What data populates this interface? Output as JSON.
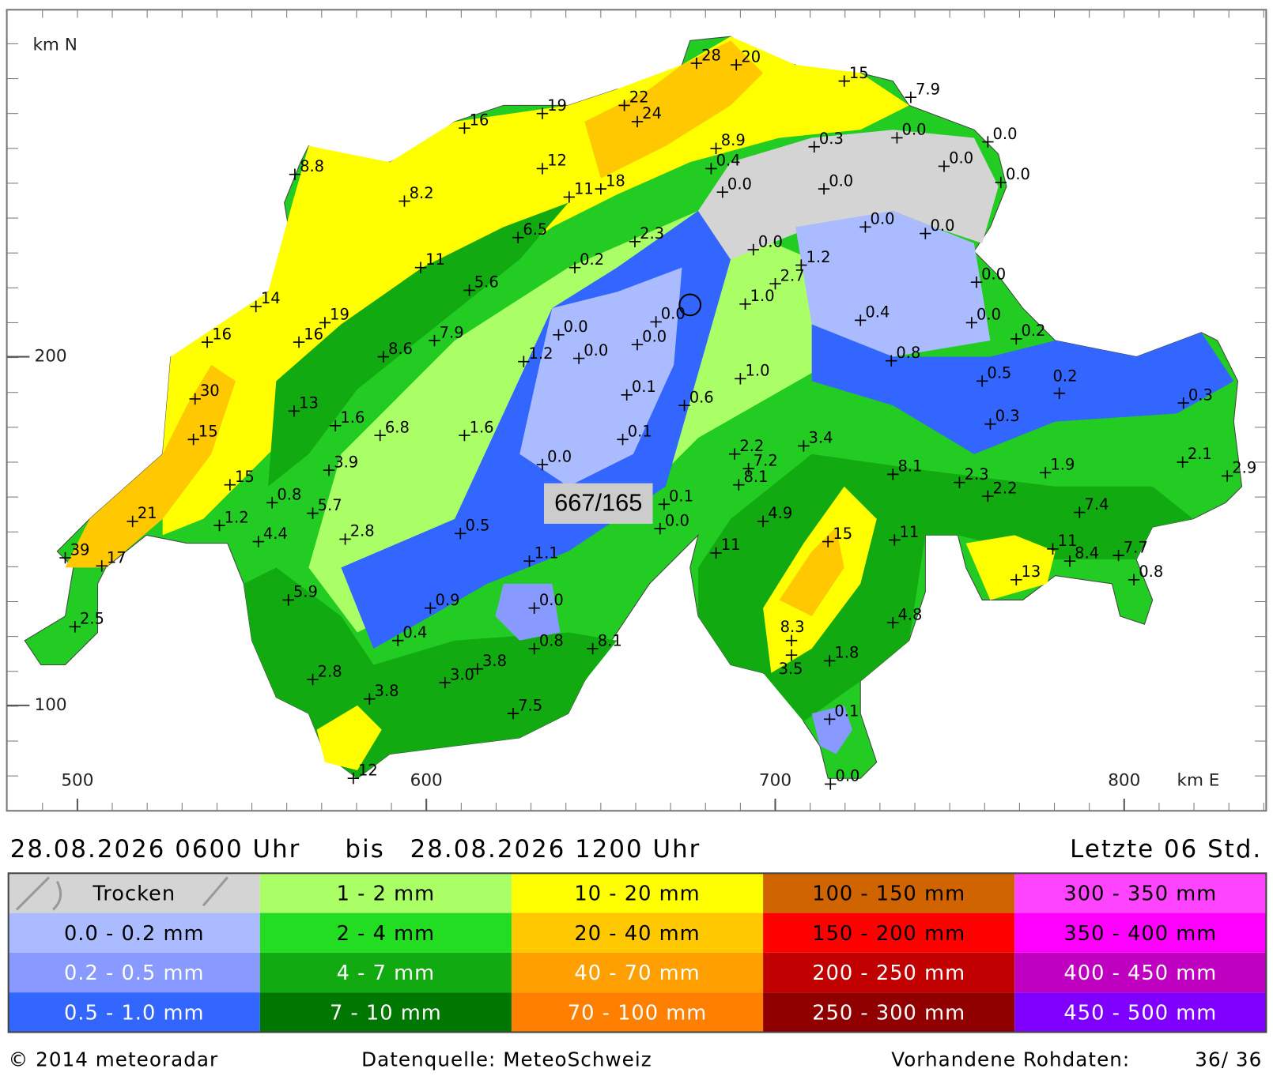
{
  "map": {
    "y_axis_label": "km N",
    "x_axis_label": "km E",
    "x_ticks": [
      500,
      600,
      700,
      800
    ],
    "y_ticks": [
      200,
      100
    ],
    "marker_label": "667/165",
    "stations": [
      "28",
      "20",
      "15",
      "7.9",
      "19",
      "22",
      "24",
      "16",
      "0.0",
      "0.0",
      "8.9",
      "0.3",
      "8.8",
      "12",
      "0.4",
      "0.0",
      "0.0",
      "8.2",
      "18",
      "0.0",
      "0.0",
      "11",
      "0.0",
      "0.0",
      "6.5",
      "2.3",
      "0.0",
      "11",
      "0.2",
      "1.2",
      "14",
      "5.6",
      "2.7",
      "0.0",
      "1.0",
      "19",
      "0.0",
      "0.4",
      "0.0",
      "16",
      "16",
      "7.9",
      "0.0",
      "0.0",
      "0.2",
      "8.6",
      "1.2",
      "0.0",
      "0.8",
      "1.0",
      "0.5",
      "0.2",
      "30",
      "0.1",
      "0.6",
      "0.3",
      "13",
      "1.6",
      "6.8",
      "0.3",
      "1.6",
      "15",
      "0.1",
      "2.2",
      "3.4",
      "7.2",
      "2.1",
      "3.9",
      "0.0",
      "8.1",
      "2.3",
      "1.9",
      "2.9",
      "15",
      "8.1",
      "2.2",
      "0.8",
      "5.7",
      "0.1",
      "7.4",
      "1.2",
      "21",
      "4.9",
      "0.0",
      "4.4",
      "2.8",
      "0.5",
      "15",
      "11",
      "11",
      "11",
      "7.7",
      "39",
      "1.1",
      "8.4",
      "17",
      "13",
      "0.8",
      "5.9",
      "0.9",
      "0.0",
      "4.8",
      "2.5",
      "8.3",
      "0.4",
      "0.8",
      "8.1",
      "1.8",
      "3.5",
      "3.8",
      "2.8",
      "3.0",
      "3.8",
      "0.1",
      "7.5",
      "12",
      "0.0"
    ]
  },
  "period": {
    "from": "28.08.2026 0600 Uhr",
    "connector": "bis",
    "to": "28.08.2026 1200 Uhr",
    "span": "Letzte 06 Std."
  },
  "legend": {
    "rows": [
      [
        {
          "label": "Trocken",
          "color": "#d4d4d4",
          "text_color": "#000000"
        },
        {
          "label": "1 - 2 mm",
          "color": "#aaff66",
          "text_color": "#000000"
        },
        {
          "label": "10 - 20 mm",
          "color": "#ffff00",
          "text_color": "#000000"
        },
        {
          "label": "100 - 150 mm",
          "color": "#d06400",
          "text_color": "#000000"
        },
        {
          "label": "300 - 350 mm",
          "color": "#ff44ff",
          "text_color": "#000000"
        }
      ],
      [
        {
          "label": "0.0 - 0.2 mm",
          "color": "#aabbff",
          "text_color": "#000000"
        },
        {
          "label": "2 - 4 mm",
          "color": "#22dd22",
          "text_color": "#000000"
        },
        {
          "label": "20 - 40 mm",
          "color": "#ffc800",
          "text_color": "#000000"
        },
        {
          "label": "150 - 200 mm",
          "color": "#ff0000",
          "text_color": "#000000"
        },
        {
          "label": "350 - 400 mm",
          "color": "#ff00ff",
          "text_color": "#000000"
        }
      ],
      [
        {
          "label": "0.2 - 0.5 mm",
          "color": "#8899ff",
          "text_color": "#ffffff"
        },
        {
          "label": "4 - 7 mm",
          "color": "#11aa11",
          "text_color": "#ffffff"
        },
        {
          "label": "40 - 70 mm",
          "color": "#ffa000",
          "text_color": "#ffffff"
        },
        {
          "label": "200 - 250 mm",
          "color": "#c00000",
          "text_color": "#ffffff"
        },
        {
          "label": "400 - 450 mm",
          "color": "#c000c0",
          "text_color": "#ffffff"
        }
      ],
      [
        {
          "label": "0.5 - 1.0 mm",
          "color": "#3366ff",
          "text_color": "#ffffff"
        },
        {
          "label": "7 - 10 mm",
          "color": "#007700",
          "text_color": "#ffffff"
        },
        {
          "label": "70 - 100 mm",
          "color": "#ff8000",
          "text_color": "#ffffff"
        },
        {
          "label": "250 - 300 mm",
          "color": "#900000",
          "text_color": "#ffffff"
        },
        {
          "label": "450 - 500 mm",
          "color": "#8000ff",
          "text_color": "#ffffff"
        }
      ]
    ]
  },
  "footer": {
    "copyright": "© 2014 meteoradar",
    "source": "Datenquelle: MeteoSchweiz",
    "raw_data_label": "Vorhandene Rohdaten:",
    "raw_data_count": "36/ 36"
  }
}
